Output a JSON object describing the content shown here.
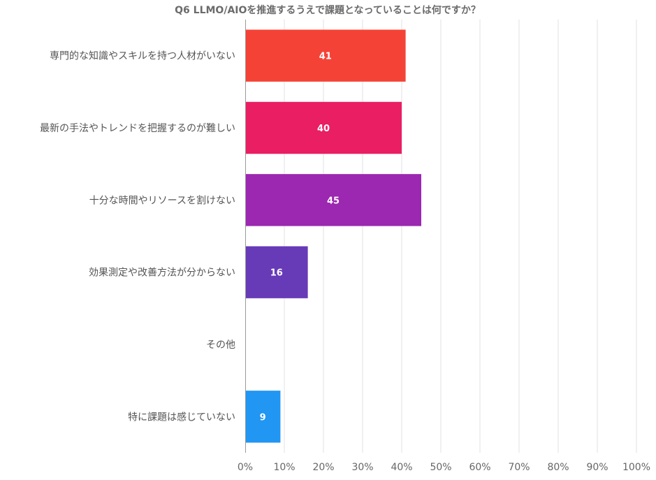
{
  "chart_data": {
    "type": "bar",
    "orientation": "horizontal",
    "title": "Q6 LLMO/AIOを推進するうえで課題となっていることは何ですか？",
    "categories": [
      "専門的な知識やスキルを持つ人材がいない",
      "最新の手法やトレンドを把握するのが難しい",
      "十分な時間やリソースを割けない",
      "効果測定や改善方法が分からない",
      "その他",
      "特に課題は感じていない"
    ],
    "values": [
      41,
      40,
      45,
      16,
      0,
      9
    ],
    "value_labels": [
      "41",
      "40",
      "45",
      "16",
      "",
      "9"
    ],
    "colors": [
      "#f44336",
      "#e91e63",
      "#9c27b0",
      "#673ab7",
      "#3f51b5",
      "#2196f3"
    ],
    "xlim": [
      0,
      100
    ],
    "xticks": [
      "0%",
      "10%",
      "20%",
      "30%",
      "40%",
      "50%",
      "60%",
      "70%",
      "80%",
      "90%",
      "100%"
    ],
    "grid": true,
    "legend": "none"
  }
}
